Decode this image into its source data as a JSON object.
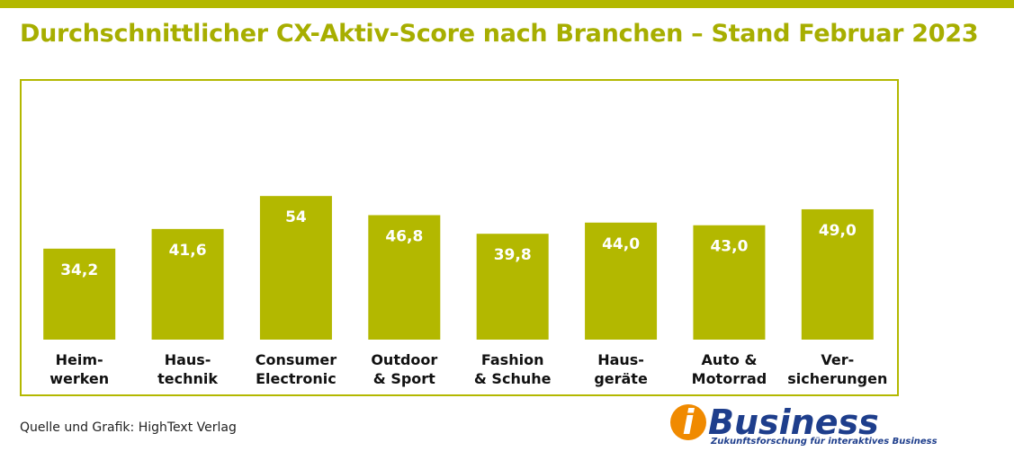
{
  "chart_data": {
    "type": "bar",
    "title": "Durchschnittlicher CX-Aktiv-Score nach Branchen – Stand Februar 2023",
    "categories": [
      "Heim-\nwerken",
      "Haus-\ntechnik",
      "Consumer\nElectronic",
      "Outdoor\n& Sport",
      "Fashion\n& Schuhe",
      "Haus-\ngeräte",
      "Auto &\nMotorrad",
      "Ver-\nsicherungen"
    ],
    "values": [
      34.2,
      41.6,
      54,
      46.8,
      39.8,
      44.0,
      43.0,
      49.0
    ],
    "value_labels": [
      "34,2",
      "41,6",
      "54",
      "46,8",
      "39,8",
      "44,0",
      "43,0",
      "49,0"
    ],
    "color": "#b3b800",
    "ylim": [
      0,
      100
    ],
    "source": "Quelle und Grafik: HighText Verlag",
    "logo": [
      "i",
      "Business"
    ],
    "logo_tagline": "Zukunftsforschung für interaktives Business"
  }
}
